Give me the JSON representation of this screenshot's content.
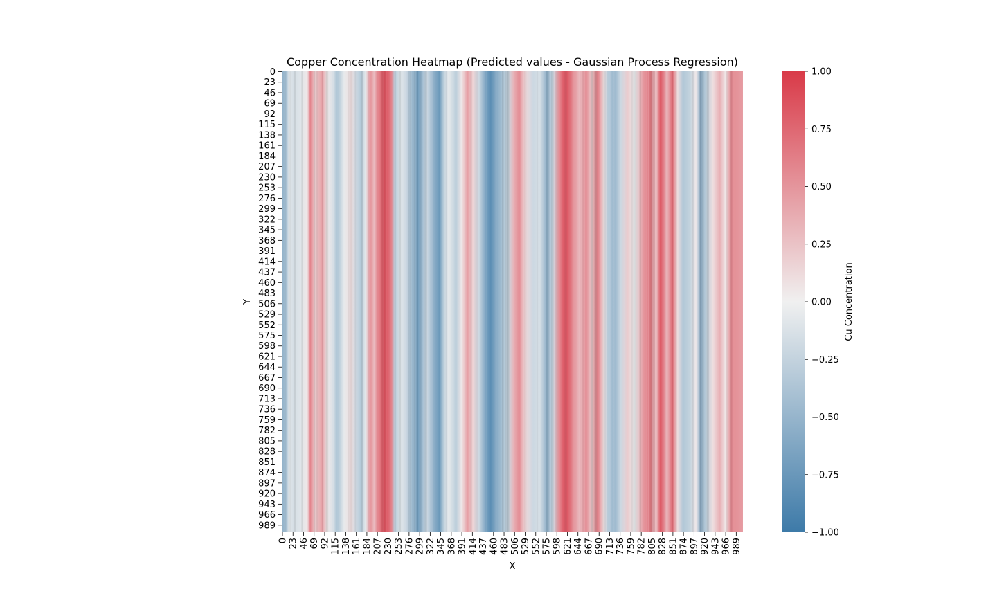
{
  "chart_data": {
    "type": "heatmap",
    "title": "Copper Concentration Heatmap (Predicted values - Gaussian Process Regression)",
    "xlabel": "X",
    "ylabel": "Y",
    "colorbar_label": "Cu Concentration",
    "colormap": {
      "low": "#3d7aa8",
      "mid": "#f0f0f0",
      "high": "#d93a48"
    },
    "value_range": [
      -1.0,
      1.0
    ],
    "x_ticks": [
      "0",
      "23",
      "46",
      "69",
      "92",
      "115",
      "138",
      "161",
      "184",
      "207",
      "230",
      "253",
      "276",
      "299",
      "322",
      "345",
      "368",
      "391",
      "414",
      "437",
      "460",
      "483",
      "506",
      "529",
      "552",
      "575",
      "598",
      "621",
      "644",
      "667",
      "690",
      "713",
      "736",
      "759",
      "782",
      "805",
      "828",
      "851",
      "874",
      "897",
      "920",
      "943",
      "966",
      "989"
    ],
    "y_ticks": [
      "0",
      "23",
      "46",
      "69",
      "92",
      "115",
      "138",
      "161",
      "184",
      "207",
      "230",
      "253",
      "276",
      "299",
      "322",
      "345",
      "368",
      "391",
      "414",
      "437",
      "460",
      "483",
      "506",
      "529",
      "552",
      "575",
      "598",
      "621",
      "644",
      "667",
      "690",
      "713",
      "736",
      "759",
      "782",
      "805",
      "828",
      "851",
      "874",
      "897",
      "920",
      "943",
      "966",
      "989"
    ],
    "colorbar_ticks": [
      "1.00",
      "0.75",
      "0.50",
      "0.25",
      "0.00",
      "−0.25",
      "−0.50",
      "−0.75",
      "−1.00"
    ],
    "x_range": [
      0,
      1000
    ],
    "column_profile": {
      "x": [
        0,
        10,
        16,
        25,
        40,
        55,
        62,
        72,
        88,
        98,
        112,
        120,
        135,
        150,
        162,
        172,
        182,
        192,
        200,
        210,
        222,
        228,
        238,
        245,
        260,
        270,
        285,
        295,
        305,
        315,
        330,
        342,
        352,
        362,
        378,
        390,
        403,
        415,
        428,
        440,
        452,
        462,
        478,
        492,
        503,
        515,
        528,
        545,
        560,
        575,
        588,
        600,
        610,
        618,
        630,
        645,
        660,
        672,
        685,
        698,
        708,
        722,
        735,
        750,
        765,
        785,
        800,
        812,
        822,
        835,
        847,
        858,
        870,
        885,
        898,
        908,
        920,
        935,
        950,
        962,
        975,
        990,
        1000
      ],
      "values": [
        -0.55,
        -0.4,
        -0.08,
        -0.15,
        -0.1,
        0.05,
        0.62,
        0.2,
        0.45,
        0.05,
        -0.15,
        -0.4,
        -0.05,
        0.1,
        -0.2,
        -0.35,
        -0.05,
        0.55,
        0.3,
        0.65,
        0.88,
        0.85,
        0.6,
        -0.3,
        -0.1,
        -0.2,
        -0.55,
        -0.72,
        -0.45,
        -0.2,
        -0.55,
        -0.75,
        -0.25,
        -0.05,
        -0.3,
        0.05,
        0.45,
        0.15,
        -0.2,
        -0.6,
        -0.85,
        -0.65,
        -0.4,
        -0.2,
        0.35,
        0.55,
        0.15,
        -0.2,
        -0.15,
        -0.55,
        -0.2,
        0.5,
        0.8,
        0.85,
        0.6,
        0.3,
        0.55,
        0.2,
        0.65,
        0.1,
        -0.35,
        -0.5,
        -0.2,
        0.2,
        -0.05,
        0.5,
        0.65,
        0.25,
        0.9,
        0.3,
        0.75,
        0.1,
        -0.35,
        -0.25,
        0.05,
        -0.55,
        -0.3,
        0.1,
        0.35,
        0.05,
        0.6,
        0.5,
        0.45
      ]
    }
  }
}
